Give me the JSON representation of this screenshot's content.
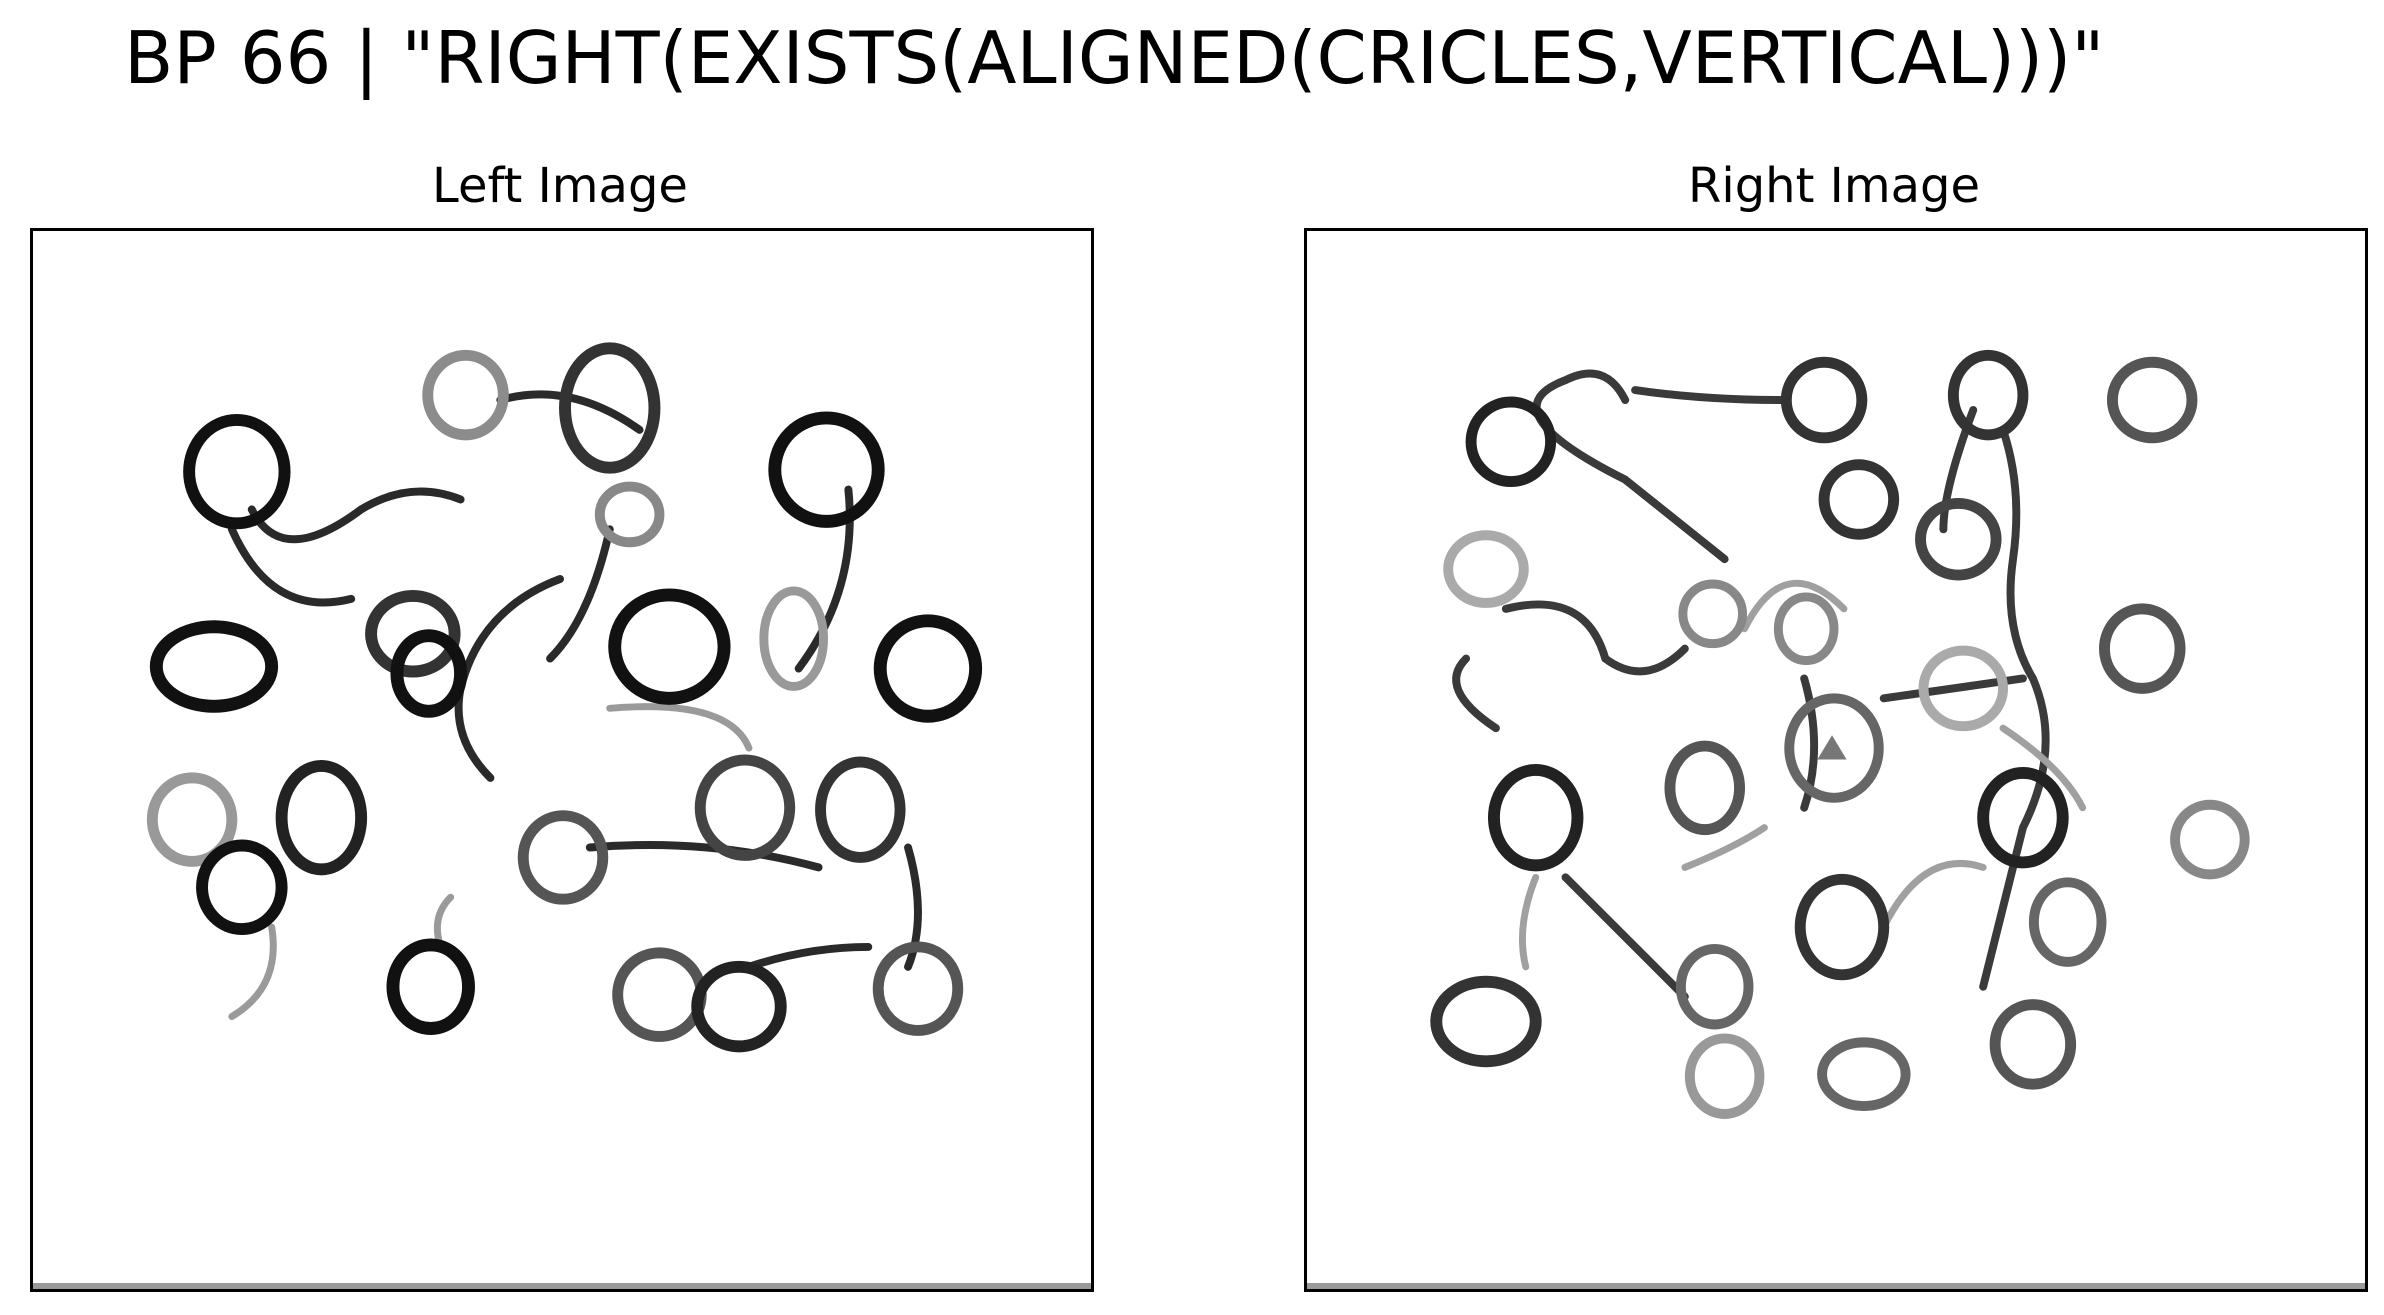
{
  "title": "BP 66 | \"RIGHT(EXISTS(ALIGNED(CRICLES,VERTICAL)))\"",
  "panels": [
    {
      "label": "Left Image"
    },
    {
      "label": "Right Image"
    }
  ],
  "colors": {
    "ink_dark": "#0a0a0a",
    "ink_mid": "#333333",
    "ink_light": "#8a8a8a",
    "frame": "#000000",
    "floor": "#9a9a9a"
  }
}
